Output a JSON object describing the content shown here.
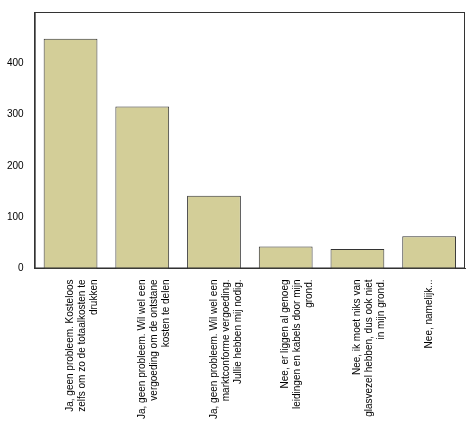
{
  "chart_data": {
    "type": "bar",
    "categories": [
      "Ja, geen probleem. Kosteloos zelfs om zo de totaalkosten te drukken",
      "Ja, geen probleem. Wil wel een vergoeding om de ontstane kosten te delen",
      "Ja, geen probleem. Wil wel een marktconforme vergoeding. Jullie hebben mij nodig.",
      "Nee, er liggen al genoeg leidingen en kabels door mijn grond.",
      "Nee, ik moet niks van glasvezel hebben, dus ook niet in mijn grond.",
      "Nee, namelijk..."
    ],
    "values": [
      448,
      316,
      142,
      43,
      38,
      63
    ],
    "color": "#d3ce98",
    "ylim": [
      0,
      500
    ],
    "yticks": [
      0,
      100,
      200,
      300,
      400
    ],
    "grid": false
  }
}
